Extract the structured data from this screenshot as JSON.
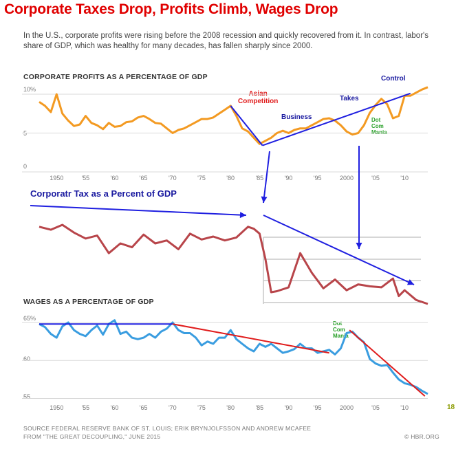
{
  "headline": "Corporate Taxes Drop, Profits Climb, Wages Drop",
  "intro": "In the U.S., corporate profits were rising before the 2008 recession and quickly recovered from it. In contrast, labor's share of GDP, which was healthy for many decades, has fallen sharply since 2000.",
  "source_line1": "SOURCE  FEDERAL RESERVE BANK OF ST. LOUIS; ERIK BRYNJOLFSSON AND ANDREW MCAFEE",
  "source_line2": "FROM  \"THE GREAT DECOUPLING,\" JUNE 2015",
  "credit": "© HBR.ORG",
  "page_number": "18",
  "colors": {
    "profits": "#f39a22",
    "tax": "#b8454a",
    "wages": "#3a9de0",
    "trend_blue": "#1f1fe0",
    "trend_red": "#e01b1b",
    "headline": "#e00000"
  },
  "chart_data": [
    {
      "type": "line",
      "title": "CORPORATE PROFITS AS A PERCENTAGE OF GDP",
      "y_tick_labels": [
        "10%",
        "5",
        "0"
      ],
      "ylim": [
        0,
        11.5
      ],
      "x_tick_labels": [
        "1950",
        "'55",
        "'60",
        "'65",
        "'70",
        "'75",
        "'80",
        "'85",
        "'90",
        "'95",
        "2000",
        "'05",
        "'10"
      ],
      "xlim": [
        1947,
        2014
      ],
      "grid": true,
      "series": [
        {
          "x": [
            1947,
            1948,
            1949,
            1950,
            1951,
            1952,
            1953,
            1954,
            1955,
            1956,
            1957,
            1958,
            1959,
            1960,
            1961,
            1962,
            1963,
            1964,
            1965,
            1966,
            1967,
            1968,
            1969,
            1970,
            1971,
            1972,
            1973,
            1974,
            1975,
            1976,
            1977,
            1978,
            1979,
            1980,
            1981,
            1982,
            1983,
            1984,
            1985,
            1986,
            1987,
            1988,
            1989,
            1990,
            1991,
            1992,
            1993,
            1994,
            1995,
            1996,
            1997,
            1998,
            1999,
            2000,
            2001,
            2002,
            2003,
            2004,
            2005,
            2006,
            2007,
            2008,
            2009,
            2010,
            2011,
            2012,
            2013,
            2014
          ],
          "values": [
            9.0,
            8.5,
            7.7,
            10.0,
            7.5,
            6.6,
            5.9,
            6.1,
            7.2,
            6.3,
            6.0,
            5.5,
            6.3,
            5.8,
            5.9,
            6.4,
            6.5,
            7.0,
            7.2,
            6.8,
            6.3,
            6.2,
            5.6,
            5.0,
            5.4,
            5.6,
            6.0,
            6.4,
            6.8,
            6.8,
            7.0,
            7.5,
            8.0,
            8.5,
            7.2,
            5.6,
            5.2,
            4.4,
            3.6,
            4.0,
            4.4,
            5.0,
            5.3,
            5.0,
            5.4,
            5.6,
            5.6,
            6.0,
            6.4,
            6.8,
            6.9,
            6.6,
            6.0,
            5.2,
            4.8,
            5.0,
            6.0,
            7.6,
            8.6,
            9.4,
            8.7,
            6.9,
            7.2,
            9.8,
            9.8,
            10.2,
            10.6,
            10.9
          ]
        }
      ],
      "annotations": [
        {
          "text": "Asian\nCompetition",
          "color": "#e01b1b"
        },
        {
          "text": "Business",
          "color": "#1a1aa0"
        },
        {
          "text": "Takes",
          "color": "#1a1aa0"
        },
        {
          "text": "Control",
          "color": "#1a1aa0"
        },
        {
          "text": "Dot\nCom\nMania",
          "color": "#2aa02a"
        }
      ]
    },
    {
      "type": "line",
      "title": "Corporatr Tax as a Percent of GDP",
      "xlim": [
        1947,
        2014
      ],
      "ylim": [
        0,
        10
      ],
      "grid": true,
      "series": [
        {
          "x": [
            1947,
            1949,
            1951,
            1953,
            1955,
            1957,
            1959,
            1961,
            1963,
            1965,
            1967,
            1969,
            1971,
            1973,
            1975,
            1977,
            1979,
            1981,
            1983,
            1984,
            1985,
            1986,
            1987,
            1988,
            1990,
            1992,
            1994,
            1996,
            1998,
            2000,
            2002,
            2004,
            2006,
            2008,
            2009,
            2010,
            2012,
            2014
          ],
          "values": [
            7.9,
            7.6,
            8.1,
            7.3,
            6.7,
            7.0,
            5.2,
            6.2,
            5.8,
            7.1,
            6.2,
            6.5,
            5.6,
            7.2,
            6.6,
            6.9,
            6.5,
            6.8,
            7.9,
            7.7,
            7.2,
            4.6,
            1.2,
            1.3,
            1.7,
            5.2,
            3.2,
            1.6,
            2.5,
            1.4,
            2.0,
            1.8,
            1.7,
            2.6,
            0.8,
            1.4,
            0.4,
            0.0
          ]
        }
      ]
    },
    {
      "type": "line",
      "title": "WAGES AS A PERCENTAGE OF GDP",
      "y_tick_labels": [
        "65%",
        "60",
        "55"
      ],
      "ylim": [
        54.5,
        66
      ],
      "x_tick_labels": [
        "1950",
        "'55",
        "'60",
        "'65",
        "'70",
        "'75",
        "'80",
        "'85",
        "'90",
        "'95",
        "2000",
        "'05",
        "'10"
      ],
      "xlim": [
        1947,
        2014
      ],
      "grid": true,
      "series": [
        {
          "x": [
            1947,
            1948,
            1949,
            1950,
            1951,
            1952,
            1953,
            1954,
            1955,
            1956,
            1957,
            1958,
            1959,
            1960,
            1961,
            1962,
            1963,
            1964,
            1965,
            1966,
            1967,
            1968,
            1969,
            1970,
            1971,
            1972,
            1973,
            1974,
            1975,
            1976,
            1977,
            1978,
            1979,
            1980,
            1981,
            1982,
            1983,
            1984,
            1985,
            1986,
            1987,
            1988,
            1989,
            1990,
            1991,
            1992,
            1993,
            1994,
            1995,
            1996,
            1997,
            1998,
            1999,
            2000,
            2001,
            2002,
            2003,
            2004,
            2005,
            2006,
            2007,
            2008,
            2009,
            2010,
            2011,
            2012,
            2013,
            2014
          ],
          "values": [
            64.8,
            64.4,
            63.5,
            63.0,
            64.5,
            65.0,
            64.0,
            63.5,
            63.2,
            64.0,
            64.6,
            63.4,
            64.8,
            65.3,
            63.5,
            63.8,
            63.0,
            62.8,
            63.0,
            63.5,
            63.0,
            63.8,
            64.2,
            65.0,
            64.0,
            63.6,
            63.6,
            63.0,
            62.0,
            62.5,
            62.2,
            63.0,
            63.0,
            64.0,
            62.8,
            62.2,
            61.6,
            61.2,
            62.2,
            61.8,
            62.2,
            61.6,
            61.0,
            61.2,
            61.5,
            62.2,
            61.6,
            61.6,
            61.0,
            61.2,
            61.4,
            60.8,
            61.6,
            63.6,
            63.8,
            63.0,
            62.4,
            60.2,
            59.6,
            59.3,
            59.4,
            58.4,
            57.5,
            57.0,
            56.8,
            56.5,
            56.0,
            55.6
          ]
        }
      ],
      "annotations": [
        {
          "text": "Dot\nCom\nMania",
          "color": "#2aa02a"
        }
      ]
    }
  ]
}
